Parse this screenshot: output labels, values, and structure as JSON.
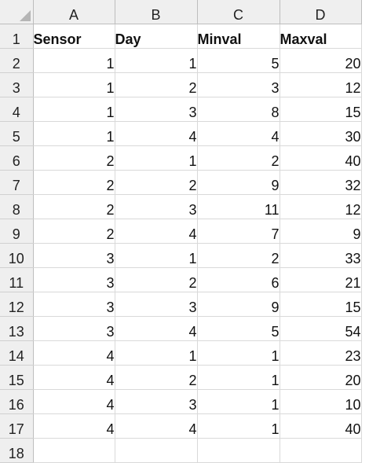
{
  "columns": [
    "A",
    "B",
    "C",
    "D"
  ],
  "rows": [
    {
      "num": "1",
      "cells": [
        "Sensor",
        "Day",
        "Minval",
        "Maxval"
      ]
    },
    {
      "num": "2",
      "cells": [
        "1",
        "1",
        "5",
        "20"
      ]
    },
    {
      "num": "3",
      "cells": [
        "1",
        "2",
        "3",
        "12"
      ]
    },
    {
      "num": "4",
      "cells": [
        "1",
        "3",
        "8",
        "15"
      ]
    },
    {
      "num": "5",
      "cells": [
        "1",
        "4",
        "4",
        "30"
      ]
    },
    {
      "num": "6",
      "cells": [
        "2",
        "1",
        "2",
        "40"
      ]
    },
    {
      "num": "7",
      "cells": [
        "2",
        "2",
        "9",
        "32"
      ]
    },
    {
      "num": "8",
      "cells": [
        "2",
        "3",
        "11",
        "12"
      ]
    },
    {
      "num": "9",
      "cells": [
        "2",
        "4",
        "7",
        "9"
      ]
    },
    {
      "num": "10",
      "cells": [
        "3",
        "1",
        "2",
        "33"
      ]
    },
    {
      "num": "11",
      "cells": [
        "3",
        "2",
        "6",
        "21"
      ]
    },
    {
      "num": "12",
      "cells": [
        "3",
        "3",
        "9",
        "15"
      ]
    },
    {
      "num": "13",
      "cells": [
        "3",
        "4",
        "5",
        "54"
      ]
    },
    {
      "num": "14",
      "cells": [
        "4",
        "1",
        "1",
        "23"
      ]
    },
    {
      "num": "15",
      "cells": [
        "4",
        "2",
        "1",
        "20"
      ]
    },
    {
      "num": "16",
      "cells": [
        "4",
        "3",
        "1",
        "10"
      ]
    },
    {
      "num": "17",
      "cells": [
        "4",
        "4",
        "1",
        "40"
      ]
    },
    {
      "num": "18",
      "cells": [
        "",
        "",
        "",
        ""
      ]
    }
  ]
}
